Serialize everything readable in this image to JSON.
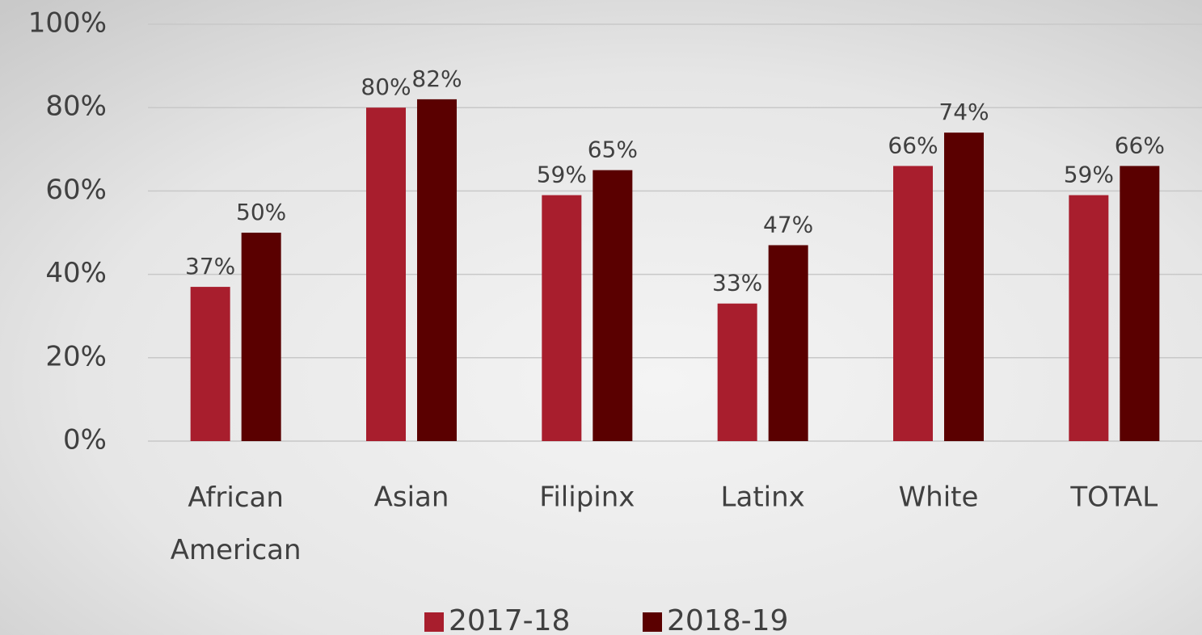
{
  "chart_data": {
    "type": "bar",
    "categories": [
      "African American",
      "Asian",
      "Filipinx",
      "Latinx",
      "White",
      "TOTAL"
    ],
    "series": [
      {
        "name": "2017-18",
        "color": "#a81e2d",
        "values": [
          37,
          80,
          59,
          33,
          66,
          59
        ],
        "value_labels": [
          "37%",
          "80%",
          "59%",
          "33%",
          "66%",
          "59%"
        ]
      },
      {
        "name": "2018-19",
        "color": "#5a0000",
        "values": [
          50,
          82,
          65,
          47,
          74,
          66
        ],
        "value_labels": [
          "50%",
          "82%",
          "65%",
          "47%",
          "74%",
          "66%"
        ]
      }
    ],
    "ylim": [
      0,
      100
    ],
    "yticks": [
      {
        "value": 0,
        "label": "0%"
      },
      {
        "value": 20,
        "label": "20%"
      },
      {
        "value": 40,
        "label": "40%"
      },
      {
        "value": 60,
        "label": "60%"
      },
      {
        "value": 80,
        "label": "80%"
      },
      {
        "value": 100,
        "label": "100%"
      }
    ],
    "grid": true,
    "legend": "bottom"
  }
}
